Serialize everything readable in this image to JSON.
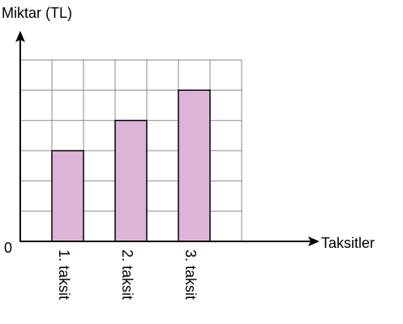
{
  "chart_data": {
    "type": "bar",
    "x_label": "Taksitler",
    "y_label": "Miktar (TL)",
    "categories": [
      "1. taksit",
      "2. taksit",
      "3. taksit"
    ],
    "values": [
      3,
      4,
      5
    ],
    "color": "#dcb4d8",
    "ylim": [
      0,
      6
    ],
    "yticks": [
      0
    ]
  }
}
